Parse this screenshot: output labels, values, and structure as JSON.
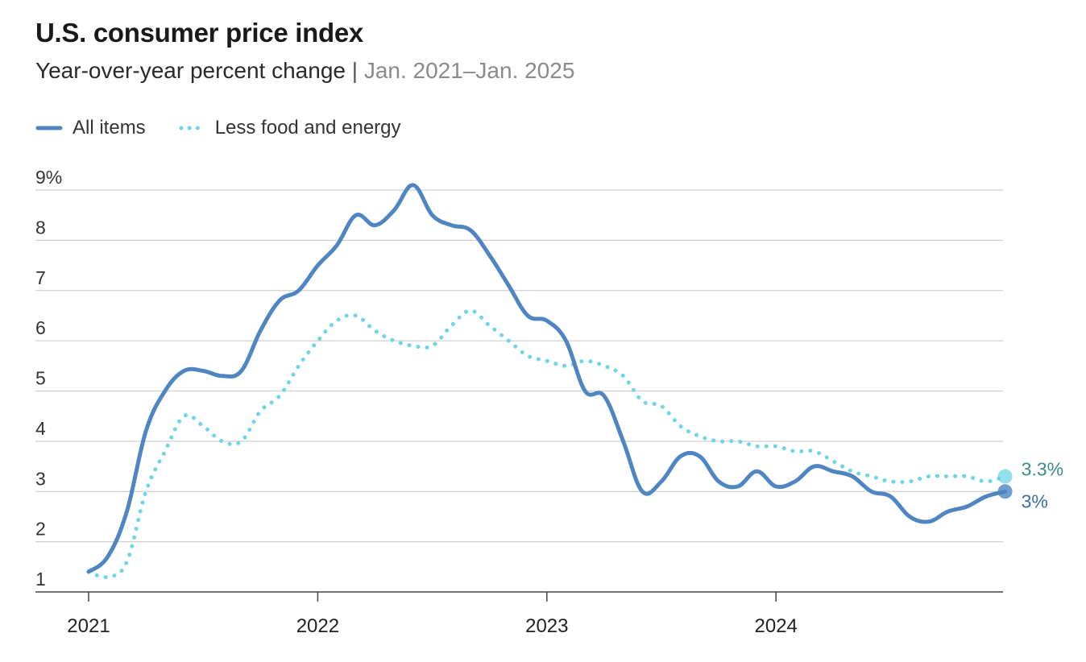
{
  "header": {
    "title": "U.S. consumer price index",
    "subtitle_main": "Year-over-year percent change",
    "subtitle_sep": "|",
    "subtitle_range": "Jan. 2021–Jan. 2025"
  },
  "legend": {
    "all_items": "All items",
    "core": "Less food and energy"
  },
  "colors": {
    "all_items": "#4f86c2",
    "core": "#6fd6e3",
    "grid": "#d0d0d0",
    "axis": "#444444",
    "label_all": "#3d6fa6",
    "label_core": "#3a8c8c"
  },
  "chart_data": {
    "type": "line",
    "ylim": [
      1,
      9
    ],
    "ytick_labels": [
      "1",
      "2",
      "3",
      "4",
      "5",
      "6",
      "7",
      "8",
      "9%"
    ],
    "xtick_labels": [
      "2021",
      "2022",
      "2023",
      "2024"
    ],
    "x_start": "2021-01",
    "series": [
      {
        "name": "All items",
        "style": "solid",
        "end_label": "3%",
        "values": [
          1.4,
          1.7,
          2.6,
          4.2,
          5.0,
          5.4,
          5.4,
          5.3,
          5.4,
          6.2,
          6.8,
          7.0,
          7.5,
          7.9,
          8.5,
          8.3,
          8.6,
          9.1,
          8.5,
          8.3,
          8.2,
          7.7,
          7.1,
          6.5,
          6.4,
          6.0,
          5.0,
          4.9,
          4.0,
          3.0,
          3.2,
          3.7,
          3.7,
          3.2,
          3.1,
          3.4,
          3.1,
          3.2,
          3.5,
          3.4,
          3.3,
          3.0,
          2.9,
          2.5,
          2.4,
          2.6,
          2.7,
          2.9,
          3.0
        ]
      },
      {
        "name": "Less food and energy",
        "style": "dotted",
        "end_label": "3.3%",
        "values": [
          1.4,
          1.3,
          1.6,
          3.0,
          3.8,
          4.5,
          4.3,
          4.0,
          4.0,
          4.6,
          4.9,
          5.5,
          6.0,
          6.4,
          6.5,
          6.2,
          6.0,
          5.9,
          5.9,
          6.3,
          6.6,
          6.3,
          6.0,
          5.7,
          5.6,
          5.5,
          5.6,
          5.5,
          5.3,
          4.8,
          4.7,
          4.3,
          4.1,
          4.0,
          4.0,
          3.9,
          3.9,
          3.8,
          3.8,
          3.6,
          3.4,
          3.3,
          3.2,
          3.2,
          3.3,
          3.3,
          3.3,
          3.2,
          3.3
        ]
      }
    ]
  }
}
